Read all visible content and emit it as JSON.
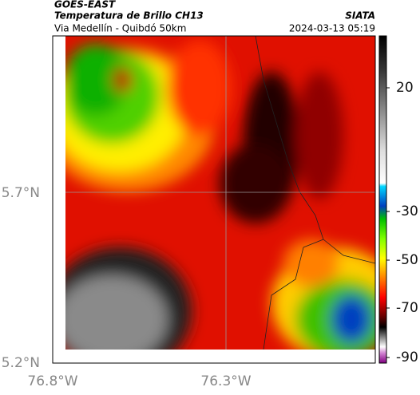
{
  "header": {
    "source": "GOES-EAST",
    "title": "Temperatura de Brillo CH13",
    "subtitle": "Via Medellín - Quibdó 50km",
    "brand": "SIATA",
    "timestamp": "2024-03-13 05:19"
  },
  "axes": {
    "lat_labels": [
      "5.7°N",
      "5.2°N"
    ],
    "lon_labels": [
      "76.8°W",
      "76.3°W"
    ]
  },
  "colorbar": {
    "labels": [
      "20",
      "-30",
      "-50",
      "-70",
      "-90"
    ]
  }
}
